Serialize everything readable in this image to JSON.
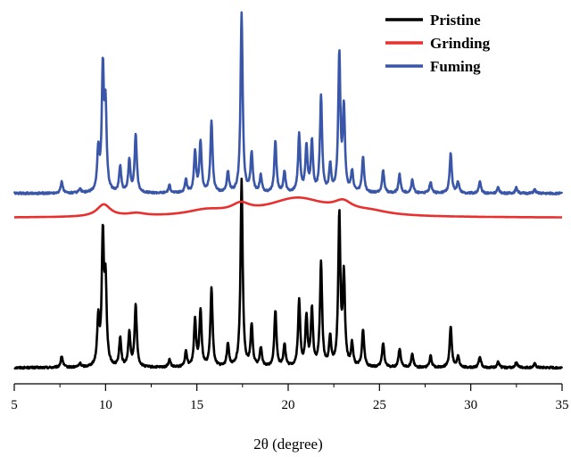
{
  "chart_data": {
    "type": "line",
    "title": "",
    "xlabel": "2θ (degree)",
    "ylabel": "",
    "xlim": [
      5,
      35
    ],
    "x_ticks": [
      5,
      10,
      15,
      20,
      25,
      30,
      35
    ],
    "grid": false,
    "legend_position": "top-right",
    "series": [
      {
        "name": "Pristine",
        "color": "#000000",
        "baseline": 0.0,
        "noise": 0.01,
        "peaks": [
          {
            "x": 7.6,
            "h": 0.06
          },
          {
            "x": 8.6,
            "h": 0.02
          },
          {
            "x": 9.6,
            "h": 0.25
          },
          {
            "x": 9.85,
            "h": 0.68
          },
          {
            "x": 10.0,
            "h": 0.42
          },
          {
            "x": 10.8,
            "h": 0.15
          },
          {
            "x": 11.3,
            "h": 0.18
          },
          {
            "x": 11.65,
            "h": 0.33
          },
          {
            "x": 13.5,
            "h": 0.04
          },
          {
            "x": 14.4,
            "h": 0.08
          },
          {
            "x": 14.9,
            "h": 0.25
          },
          {
            "x": 15.2,
            "h": 0.3
          },
          {
            "x": 15.8,
            "h": 0.42
          },
          {
            "x": 16.7,
            "h": 0.12
          },
          {
            "x": 17.45,
            "h": 1.0
          },
          {
            "x": 18.0,
            "h": 0.22
          },
          {
            "x": 18.5,
            "h": 0.1
          },
          {
            "x": 19.3,
            "h": 0.3
          },
          {
            "x": 19.8,
            "h": 0.12
          },
          {
            "x": 20.6,
            "h": 0.35
          },
          {
            "x": 21.0,
            "h": 0.26
          },
          {
            "x": 21.3,
            "h": 0.3
          },
          {
            "x": 21.8,
            "h": 0.55
          },
          {
            "x": 22.3,
            "h": 0.15
          },
          {
            "x": 22.8,
            "h": 0.8
          },
          {
            "x": 23.05,
            "h": 0.48
          },
          {
            "x": 23.5,
            "h": 0.12
          },
          {
            "x": 24.1,
            "h": 0.2
          },
          {
            "x": 25.2,
            "h": 0.13
          },
          {
            "x": 26.1,
            "h": 0.1
          },
          {
            "x": 26.8,
            "h": 0.07
          },
          {
            "x": 27.8,
            "h": 0.06
          },
          {
            "x": 28.9,
            "h": 0.22
          },
          {
            "x": 29.3,
            "h": 0.06
          },
          {
            "x": 30.5,
            "h": 0.06
          },
          {
            "x": 31.5,
            "h": 0.03
          },
          {
            "x": 32.5,
            "h": 0.03
          },
          {
            "x": 33.5,
            "h": 0.02
          }
        ]
      },
      {
        "name": "Grinding",
        "color": "#e8312f",
        "baseline": 0.8,
        "noise": 0.0,
        "peaks": [
          {
            "x": 9.9,
            "w": 0.45,
            "h": 0.065
          },
          {
            "x": 11.7,
            "w": 0.6,
            "h": 0.015
          },
          {
            "x": 15.5,
            "w": 1.3,
            "h": 0.03
          },
          {
            "x": 17.4,
            "w": 0.6,
            "h": 0.045
          },
          {
            "x": 20.5,
            "w": 2.0,
            "h": 0.1
          },
          {
            "x": 23.0,
            "w": 0.6,
            "h": 0.05
          },
          {
            "x": 24.5,
            "w": 1.2,
            "h": 0.02
          }
        ]
      },
      {
        "name": "Fuming",
        "color": "#3a56a8",
        "baseline": 0.93,
        "noise": 0.01,
        "peaks": [
          {
            "x": 7.6,
            "h": 0.06
          },
          {
            "x": 8.6,
            "h": 0.02
          },
          {
            "x": 9.6,
            "h": 0.22
          },
          {
            "x": 9.85,
            "h": 0.64
          },
          {
            "x": 10.0,
            "h": 0.42
          },
          {
            "x": 10.8,
            "h": 0.14
          },
          {
            "x": 11.3,
            "h": 0.17
          },
          {
            "x": 11.65,
            "h": 0.31
          },
          {
            "x": 13.5,
            "h": 0.04
          },
          {
            "x": 14.4,
            "h": 0.07
          },
          {
            "x": 14.9,
            "h": 0.22
          },
          {
            "x": 15.2,
            "h": 0.27
          },
          {
            "x": 15.8,
            "h": 0.38
          },
          {
            "x": 16.7,
            "h": 0.11
          },
          {
            "x": 17.45,
            "h": 0.96
          },
          {
            "x": 18.0,
            "h": 0.21
          },
          {
            "x": 18.5,
            "h": 0.09
          },
          {
            "x": 19.3,
            "h": 0.27
          },
          {
            "x": 19.8,
            "h": 0.11
          },
          {
            "x": 20.6,
            "h": 0.31
          },
          {
            "x": 21.0,
            "h": 0.24
          },
          {
            "x": 21.3,
            "h": 0.27
          },
          {
            "x": 21.8,
            "h": 0.51
          },
          {
            "x": 22.3,
            "h": 0.14
          },
          {
            "x": 22.8,
            "h": 0.73
          },
          {
            "x": 23.05,
            "h": 0.44
          },
          {
            "x": 23.5,
            "h": 0.11
          },
          {
            "x": 24.1,
            "h": 0.19
          },
          {
            "x": 25.2,
            "h": 0.12
          },
          {
            "x": 26.1,
            "h": 0.1
          },
          {
            "x": 26.8,
            "h": 0.07
          },
          {
            "x": 27.8,
            "h": 0.06
          },
          {
            "x": 28.9,
            "h": 0.21
          },
          {
            "x": 29.3,
            "h": 0.06
          },
          {
            "x": 30.5,
            "h": 0.06
          },
          {
            "x": 31.5,
            "h": 0.03
          },
          {
            "x": 32.5,
            "h": 0.03
          },
          {
            "x": 33.5,
            "h": 0.02
          }
        ]
      }
    ]
  }
}
